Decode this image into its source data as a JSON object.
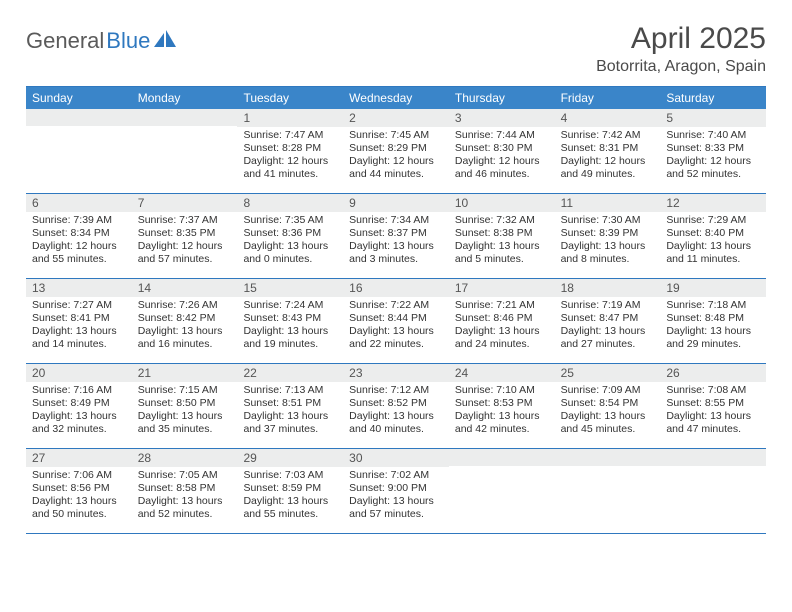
{
  "logo": {
    "text1": "General",
    "text2": "Blue"
  },
  "title": "April 2025",
  "location": "Botorrita, Aragon, Spain",
  "colors": {
    "header_bg": "#3a85c9",
    "border": "#2f78bf",
    "daynum_bg": "#eceded",
    "text": "#333333",
    "title_text": "#4a4a4a"
  },
  "days_of_week": [
    "Sunday",
    "Monday",
    "Tuesday",
    "Wednesday",
    "Thursday",
    "Friday",
    "Saturday"
  ],
  "weeks": [
    [
      {
        "n": "",
        "sunrise": "",
        "sunset": "",
        "daylight": ""
      },
      {
        "n": "",
        "sunrise": "",
        "sunset": "",
        "daylight": ""
      },
      {
        "n": "1",
        "sunrise": "Sunrise: 7:47 AM",
        "sunset": "Sunset: 8:28 PM",
        "daylight": "Daylight: 12 hours and 41 minutes."
      },
      {
        "n": "2",
        "sunrise": "Sunrise: 7:45 AM",
        "sunset": "Sunset: 8:29 PM",
        "daylight": "Daylight: 12 hours and 44 minutes."
      },
      {
        "n": "3",
        "sunrise": "Sunrise: 7:44 AM",
        "sunset": "Sunset: 8:30 PM",
        "daylight": "Daylight: 12 hours and 46 minutes."
      },
      {
        "n": "4",
        "sunrise": "Sunrise: 7:42 AM",
        "sunset": "Sunset: 8:31 PM",
        "daylight": "Daylight: 12 hours and 49 minutes."
      },
      {
        "n": "5",
        "sunrise": "Sunrise: 7:40 AM",
        "sunset": "Sunset: 8:33 PM",
        "daylight": "Daylight: 12 hours and 52 minutes."
      }
    ],
    [
      {
        "n": "6",
        "sunrise": "Sunrise: 7:39 AM",
        "sunset": "Sunset: 8:34 PM",
        "daylight": "Daylight: 12 hours and 55 minutes."
      },
      {
        "n": "7",
        "sunrise": "Sunrise: 7:37 AM",
        "sunset": "Sunset: 8:35 PM",
        "daylight": "Daylight: 12 hours and 57 minutes."
      },
      {
        "n": "8",
        "sunrise": "Sunrise: 7:35 AM",
        "sunset": "Sunset: 8:36 PM",
        "daylight": "Daylight: 13 hours and 0 minutes."
      },
      {
        "n": "9",
        "sunrise": "Sunrise: 7:34 AM",
        "sunset": "Sunset: 8:37 PM",
        "daylight": "Daylight: 13 hours and 3 minutes."
      },
      {
        "n": "10",
        "sunrise": "Sunrise: 7:32 AM",
        "sunset": "Sunset: 8:38 PM",
        "daylight": "Daylight: 13 hours and 5 minutes."
      },
      {
        "n": "11",
        "sunrise": "Sunrise: 7:30 AM",
        "sunset": "Sunset: 8:39 PM",
        "daylight": "Daylight: 13 hours and 8 minutes."
      },
      {
        "n": "12",
        "sunrise": "Sunrise: 7:29 AM",
        "sunset": "Sunset: 8:40 PM",
        "daylight": "Daylight: 13 hours and 11 minutes."
      }
    ],
    [
      {
        "n": "13",
        "sunrise": "Sunrise: 7:27 AM",
        "sunset": "Sunset: 8:41 PM",
        "daylight": "Daylight: 13 hours and 14 minutes."
      },
      {
        "n": "14",
        "sunrise": "Sunrise: 7:26 AM",
        "sunset": "Sunset: 8:42 PM",
        "daylight": "Daylight: 13 hours and 16 minutes."
      },
      {
        "n": "15",
        "sunrise": "Sunrise: 7:24 AM",
        "sunset": "Sunset: 8:43 PM",
        "daylight": "Daylight: 13 hours and 19 minutes."
      },
      {
        "n": "16",
        "sunrise": "Sunrise: 7:22 AM",
        "sunset": "Sunset: 8:44 PM",
        "daylight": "Daylight: 13 hours and 22 minutes."
      },
      {
        "n": "17",
        "sunrise": "Sunrise: 7:21 AM",
        "sunset": "Sunset: 8:46 PM",
        "daylight": "Daylight: 13 hours and 24 minutes."
      },
      {
        "n": "18",
        "sunrise": "Sunrise: 7:19 AM",
        "sunset": "Sunset: 8:47 PM",
        "daylight": "Daylight: 13 hours and 27 minutes."
      },
      {
        "n": "19",
        "sunrise": "Sunrise: 7:18 AM",
        "sunset": "Sunset: 8:48 PM",
        "daylight": "Daylight: 13 hours and 29 minutes."
      }
    ],
    [
      {
        "n": "20",
        "sunrise": "Sunrise: 7:16 AM",
        "sunset": "Sunset: 8:49 PM",
        "daylight": "Daylight: 13 hours and 32 minutes."
      },
      {
        "n": "21",
        "sunrise": "Sunrise: 7:15 AM",
        "sunset": "Sunset: 8:50 PM",
        "daylight": "Daylight: 13 hours and 35 minutes."
      },
      {
        "n": "22",
        "sunrise": "Sunrise: 7:13 AM",
        "sunset": "Sunset: 8:51 PM",
        "daylight": "Daylight: 13 hours and 37 minutes."
      },
      {
        "n": "23",
        "sunrise": "Sunrise: 7:12 AM",
        "sunset": "Sunset: 8:52 PM",
        "daylight": "Daylight: 13 hours and 40 minutes."
      },
      {
        "n": "24",
        "sunrise": "Sunrise: 7:10 AM",
        "sunset": "Sunset: 8:53 PM",
        "daylight": "Daylight: 13 hours and 42 minutes."
      },
      {
        "n": "25",
        "sunrise": "Sunrise: 7:09 AM",
        "sunset": "Sunset: 8:54 PM",
        "daylight": "Daylight: 13 hours and 45 minutes."
      },
      {
        "n": "26",
        "sunrise": "Sunrise: 7:08 AM",
        "sunset": "Sunset: 8:55 PM",
        "daylight": "Daylight: 13 hours and 47 minutes."
      }
    ],
    [
      {
        "n": "27",
        "sunrise": "Sunrise: 7:06 AM",
        "sunset": "Sunset: 8:56 PM",
        "daylight": "Daylight: 13 hours and 50 minutes."
      },
      {
        "n": "28",
        "sunrise": "Sunrise: 7:05 AM",
        "sunset": "Sunset: 8:58 PM",
        "daylight": "Daylight: 13 hours and 52 minutes."
      },
      {
        "n": "29",
        "sunrise": "Sunrise: 7:03 AM",
        "sunset": "Sunset: 8:59 PM",
        "daylight": "Daylight: 13 hours and 55 minutes."
      },
      {
        "n": "30",
        "sunrise": "Sunrise: 7:02 AM",
        "sunset": "Sunset: 9:00 PM",
        "daylight": "Daylight: 13 hours and 57 minutes."
      },
      {
        "n": "",
        "sunrise": "",
        "sunset": "",
        "daylight": ""
      },
      {
        "n": "",
        "sunrise": "",
        "sunset": "",
        "daylight": ""
      },
      {
        "n": "",
        "sunrise": "",
        "sunset": "",
        "daylight": ""
      }
    ]
  ]
}
